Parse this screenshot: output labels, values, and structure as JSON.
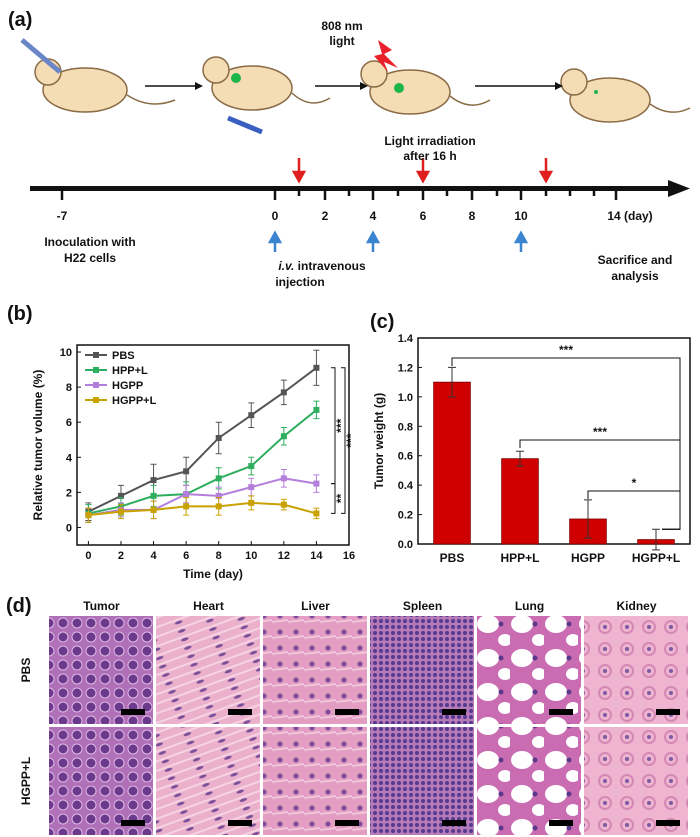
{
  "panel_a": {
    "label": "(a)",
    "light_lines": [
      "808 nm",
      "light"
    ],
    "irradiation_lines": [
      "Light irradiation",
      "after 16 h"
    ],
    "timeline_labels": [
      "-7",
      "0",
      "2",
      "4",
      "6",
      "8",
      "10",
      "14 (day)"
    ],
    "inoculation_lines": [
      "Inoculation with",
      "H22 cells"
    ],
    "injection": {
      "abbr": "i.v.",
      "word": "intravenous",
      "line2": "injection"
    },
    "sacrifice_lines": [
      "Sacrifice and",
      "analysis"
    ]
  },
  "chart_data": [
    {
      "type": "line",
      "label": "(b)",
      "xlabel": "Time (day)",
      "ylabel": "Relative tumor volume (%)",
      "x": [
        0,
        2,
        4,
        6,
        8,
        10,
        12,
        14
      ],
      "xlim": [
        -0.7,
        16
      ],
      "xticks": [
        0,
        2,
        4,
        6,
        8,
        10,
        12,
        14,
        16
      ],
      "ylim": [
        -1,
        10.4
      ],
      "yticks": [
        0,
        2,
        4,
        6,
        8,
        10
      ],
      "legend": "upper left",
      "series": [
        {
          "name": "PBS",
          "color": "#555555",
          "values": [
            0.9,
            1.8,
            2.7,
            3.2,
            5.1,
            6.4,
            7.7,
            9.1
          ],
          "errors": [
            0.5,
            0.6,
            0.9,
            0.8,
            0.9,
            0.7,
            0.7,
            1.0
          ]
        },
        {
          "name": "HPP+L",
          "color": "#2eae5e",
          "values": [
            0.8,
            1.2,
            1.8,
            1.9,
            2.8,
            3.5,
            5.2,
            6.7
          ],
          "errors": [
            0.5,
            0.5,
            0.6,
            0.7,
            0.6,
            0.5,
            0.5,
            0.5
          ]
        },
        {
          "name": "HGPP",
          "color": "#b47fdc",
          "values": [
            0.7,
            1.0,
            1.0,
            1.9,
            1.8,
            2.3,
            2.8,
            2.5
          ],
          "errors": [
            0.4,
            0.4,
            0.5,
            0.5,
            0.5,
            0.5,
            0.5,
            0.5
          ]
        },
        {
          "name": "HGPP+L",
          "color": "#c9a200",
          "values": [
            0.7,
            0.9,
            1.0,
            1.2,
            1.2,
            1.4,
            1.3,
            0.8
          ],
          "errors": [
            0.4,
            0.4,
            0.5,
            0.5,
            0.5,
            0.4,
            0.3,
            0.3
          ]
        }
      ],
      "annotations": [
        "***",
        "***",
        "**"
      ]
    },
    {
      "type": "bar",
      "label": "(c)",
      "ylabel": "Tumor weight (g)",
      "categories": [
        "PBS",
        "HPP+L",
        "HGPP",
        "HGPP+L"
      ],
      "values": [
        1.1,
        0.58,
        0.17,
        0.03
      ],
      "errors": [
        0.1,
        0.05,
        0.13,
        0.07
      ],
      "color": "#d10000",
      "ylim": [
        0,
        1.4
      ],
      "yticks": [
        {
          "value": 0,
          "label": "0.0"
        },
        0.2,
        0.4,
        0.6,
        0.8,
        {
          "value": 1,
          "label": "1.0"
        },
        1.2,
        1.4
      ],
      "annotations": [
        "***",
        "***",
        "*"
      ]
    }
  ],
  "panel_d": {
    "label": "(d)",
    "columns": [
      "Tumor",
      "Heart",
      "Liver",
      "Spleen",
      "Lung",
      "Kidney"
    ],
    "rows": [
      "PBS",
      "HGPP+L"
    ]
  }
}
